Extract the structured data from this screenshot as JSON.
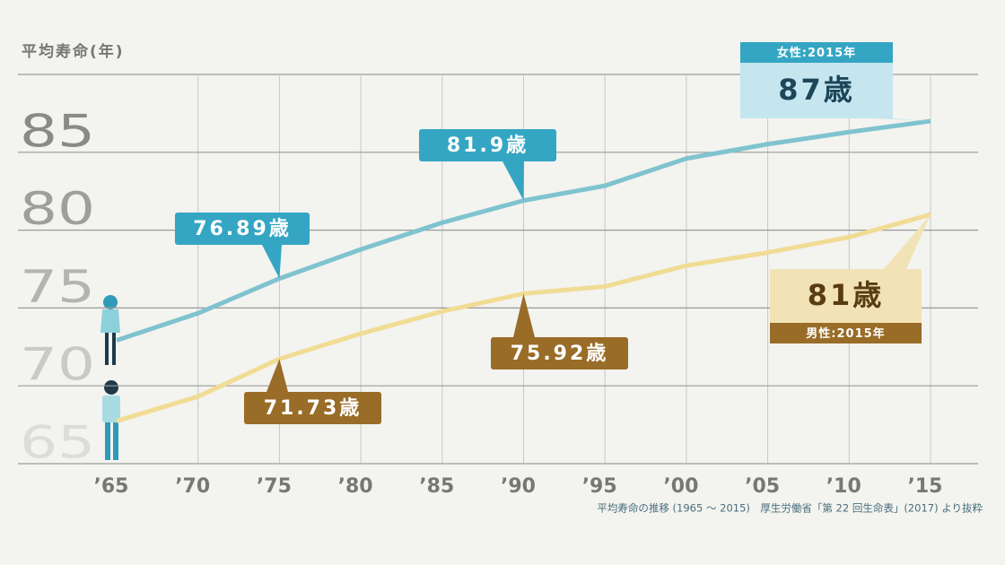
{
  "chart_data": {
    "type": "line",
    "y_label": "平均寿命(年)",
    "source": "平均寿命の推移 (1965 ～ 2015)　厚生労働省「第 22 回生命表」(2017) より抜粋",
    "categories": [
      "’65",
      "’70",
      "’75",
      "’80",
      "’85",
      "’90",
      "’95",
      "’00",
      "’05",
      "’10",
      "’15"
    ],
    "series": [
      {
        "color": "#7fc3cf",
        "values": [
          72.92,
          74.66,
          76.89,
          78.76,
          80.48,
          81.9,
          82.85,
          84.6,
          85.52,
          86.3,
          87
        ],
        "value_labels": [
          null,
          null,
          "76.89歳",
          null,
          null,
          "81.9歳",
          null,
          null,
          null,
          null,
          "87歳"
        ],
        "end_note": "女性:2015年"
      },
      {
        "color": "#f1dc94",
        "values": [
          67.74,
          69.31,
          71.73,
          73.35,
          74.78,
          75.92,
          76.38,
          77.72,
          78.56,
          79.55,
          81
        ],
        "value_labels": [
          null,
          null,
          "71.73歳",
          null,
          null,
          "75.92歳",
          null,
          null,
          null,
          null,
          "81歳"
        ],
        "end_note": "男性:2015年"
      }
    ],
    "ylim": [
      65,
      90
    ],
    "yticks": [
      65,
      70,
      75,
      80,
      85
    ],
    "grid": true
  }
}
